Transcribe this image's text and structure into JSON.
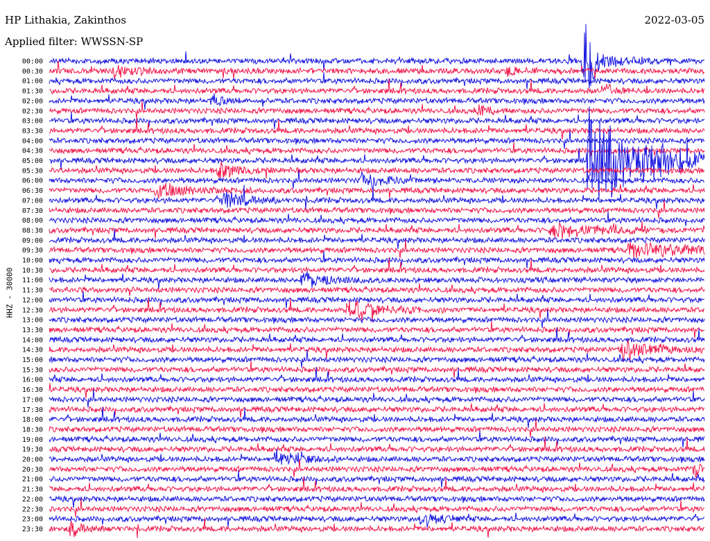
{
  "header": {
    "station": "HP Lithakia, Zakinthos",
    "date": "2022-03-05",
    "filter": "Applied filter: WWSSN-SP"
  },
  "axis": {
    "ylabel": "HHZ - 30000"
  },
  "colors": {
    "odd_trace": "#1212e0",
    "even_trace": "#f01448",
    "background": "#ffffff",
    "tick_text": "#000000"
  },
  "chart_data": {
    "type": "line",
    "title": "HP Lithakia, Zakinthos",
    "subtitle": "Applied filter: WWSSN-SP",
    "ylabel": "HHZ - 30000",
    "xlabel": "",
    "grid": false,
    "row_labels": [
      "00:00",
      "00:30",
      "01:00",
      "01:30",
      "02:00",
      "02:30",
      "03:00",
      "03:30",
      "04:00",
      "04:30",
      "05:00",
      "05:30",
      "06:00",
      "06:30",
      "07:00",
      "07:30",
      "08:00",
      "08:30",
      "09:00",
      "09:30",
      "10:00",
      "10:30",
      "11:00",
      "11:30",
      "12:00",
      "12:30",
      "13:00",
      "13:30",
      "14:00",
      "14:30",
      "15:00",
      "15:30",
      "16:00",
      "16:30",
      "17:00",
      "17:30",
      "18:00",
      "18:30",
      "19:00",
      "19:30",
      "20:00",
      "20:30",
      "21:00",
      "21:30",
      "22:00",
      "22:30",
      "23:00",
      "23:30"
    ],
    "row_duration_minutes": 30,
    "events": [
      {
        "row": 0,
        "minute": 24.4,
        "amplitude": 3.5,
        "duration_minutes": 1.2
      },
      {
        "row": 0,
        "minute": 24.6,
        "amplitude": 12,
        "duration_minutes": 0.3
      },
      {
        "row": 1,
        "minute": 3.0,
        "amplitude": 1.4,
        "duration_minutes": 1.2
      },
      {
        "row": 1,
        "minute": 21.0,
        "amplitude": 1.5,
        "duration_minutes": 0.5
      },
      {
        "row": 3,
        "minute": 25.5,
        "amplitude": 1.6,
        "duration_minutes": 0.6
      },
      {
        "row": 4,
        "minute": 7.5,
        "amplitude": 1.4,
        "duration_minutes": 0.4
      },
      {
        "row": 5,
        "minute": 19.8,
        "amplitude": 1.2,
        "duration_minutes": 0.6
      },
      {
        "row": 10,
        "minute": 24.7,
        "amplitude": 14,
        "duration_minutes": 2.5
      },
      {
        "row": 11,
        "minute": 7.8,
        "amplitude": 2.5,
        "duration_minutes": 0.8
      },
      {
        "row": 12,
        "minute": 14.3,
        "amplitude": 1.8,
        "duration_minutes": 1.0
      },
      {
        "row": 13,
        "minute": 4.9,
        "amplitude": 2.0,
        "duration_minutes": 1.5
      },
      {
        "row": 14,
        "minute": 8.0,
        "amplitude": 2.4,
        "duration_minutes": 0.9
      },
      {
        "row": 17,
        "minute": 23.0,
        "amplitude": 2.0,
        "duration_minutes": 2.0
      },
      {
        "row": 19,
        "minute": 26.5,
        "amplitude": 2.2,
        "duration_minutes": 2.5
      },
      {
        "row": 22,
        "minute": 11.6,
        "amplitude": 2.0,
        "duration_minutes": 1.2
      },
      {
        "row": 25,
        "minute": 13.7,
        "amplitude": 2.3,
        "duration_minutes": 1.5
      },
      {
        "row": 29,
        "minute": 26.3,
        "amplitude": 3.0,
        "duration_minutes": 1.2
      },
      {
        "row": 40,
        "minute": 10.3,
        "amplitude": 1.8,
        "duration_minutes": 1.0
      },
      {
        "row": 41,
        "minute": 29.5,
        "amplitude": 2.0,
        "duration_minutes": 0.8
      },
      {
        "row": 46,
        "minute": 17.0,
        "amplitude": 2.5,
        "duration_minutes": 0.7
      },
      {
        "row": 47,
        "minute": 1.0,
        "amplitude": 2.0,
        "duration_minutes": 0.5
      }
    ]
  }
}
